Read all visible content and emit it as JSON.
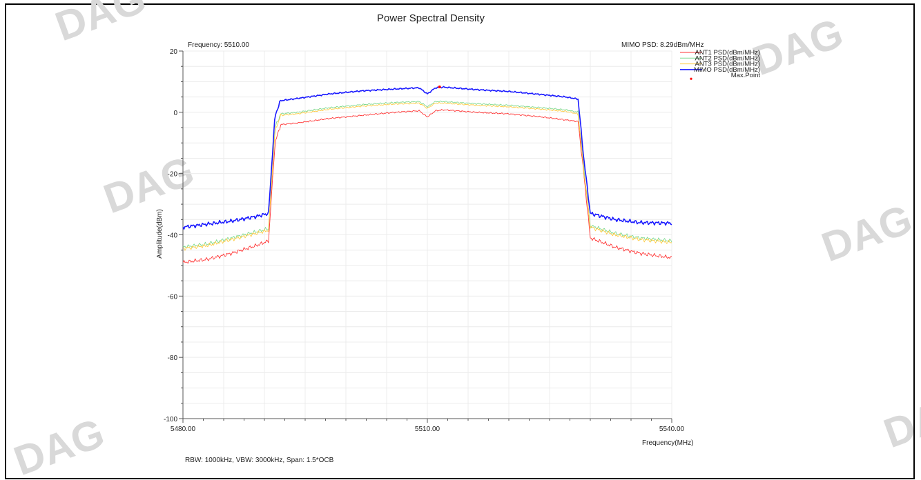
{
  "watermark": "DAG",
  "chart_data": {
    "type": "line",
    "title": "Power Spectral Density",
    "xlabel": "Frequency(MHz)",
    "ylabel": "Amplitude(dBm)",
    "xlim": [
      5480,
      5540
    ],
    "ylim": [
      -100,
      20
    ],
    "x_ticks": [
      5480,
      5510,
      5540
    ],
    "x_tick_labels": [
      "5480.00",
      "5510.00",
      "5540.00"
    ],
    "y_ticks": [
      20,
      0,
      -20,
      -40,
      -60,
      -80,
      -100
    ],
    "grid": true,
    "legend_position": "top-right",
    "annotations": {
      "frequency": "Frequency: 5510.00",
      "mimo_psd": "MIMO PSD: 8.29dBm/MHz",
      "footer": "RBW: 1000kHz, VBW: 3000kHz, Span: 1.5*OCB"
    },
    "x": [
      5480,
      5483,
      5486,
      5489,
      5490.5,
      5491.3,
      5492,
      5494,
      5498,
      5502,
      5506,
      5509,
      5510,
      5511,
      5512,
      5516,
      5520,
      5524,
      5527,
      5528.5,
      5529.2,
      5530,
      5533,
      5536,
      5540
    ],
    "series": [
      {
        "name": "ANT1 PSD(dBm/MHz)",
        "color": "#ff3333",
        "values": [
          -49,
          -48,
          -46,
          -43.5,
          -42,
          -10,
          -4,
          -3.5,
          -2,
          -1,
          0,
          0.5,
          -1.5,
          0.5,
          0.8,
          0,
          -0.5,
          -1.5,
          -2.5,
          -3,
          -20,
          -41,
          -44,
          -46,
          -47.5
        ]
      },
      {
        "name": "ANT2 PSD(dBm/MHz)",
        "color": "#7fd98f",
        "values": [
          -44,
          -43,
          -41,
          -39,
          -38,
          -5,
          -0.5,
          0,
          1.5,
          2.5,
          3.2,
          3.5,
          1.8,
          3.5,
          3.5,
          2.8,
          2.3,
          1.5,
          0.8,
          0,
          -18,
          -37,
          -39.5,
          -41,
          -42
        ]
      },
      {
        "name": "ANT3 PSD(dBm/MHz)",
        "color": "#ffcc44",
        "values": [
          -44.5,
          -43.5,
          -41.5,
          -39.5,
          -38.5,
          -6,
          -1,
          -0.5,
          1,
          2,
          2.7,
          3,
          1.3,
          3,
          3,
          2.3,
          1.8,
          1,
          0.3,
          -0.5,
          -19,
          -37.5,
          -40,
          -41.5,
          -42.5
        ]
      },
      {
        "name": "MIMO PSD(dBm/MHz)",
        "color": "#1a1aff",
        "values": [
          -37.5,
          -36.5,
          -35.5,
          -34,
          -33,
          -1,
          3.8,
          4.5,
          6,
          7,
          7.6,
          8,
          6,
          8,
          8.2,
          7.4,
          6.8,
          5.8,
          5,
          4.3,
          -15,
          -33,
          -35,
          -36,
          -36.2
        ]
      }
    ],
    "max_point": {
      "name": "Max.Point",
      "x": 5511.5,
      "y": 8.29,
      "color": "#ff0000"
    }
  }
}
